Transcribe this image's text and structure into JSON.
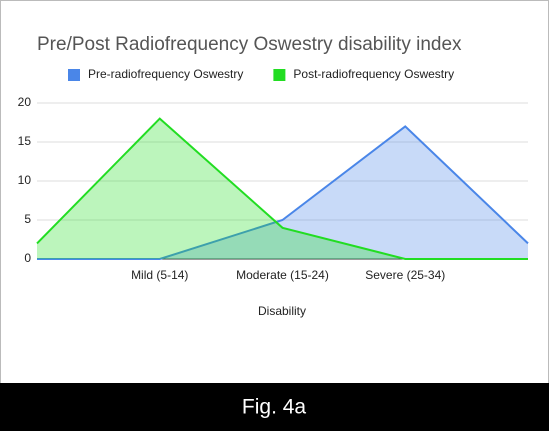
{
  "chart_data": {
    "type": "area",
    "title": "Pre/Post Radiofrequency Oswestry disability index",
    "x_label": "Disability",
    "categories": [
      null,
      "Mild (5-14)",
      "Moderate (15-24)",
      "Severe (25-34)",
      null
    ],
    "series": [
      {
        "name": "Pre-radiofrequency Oswestry",
        "color": "#4a86e8",
        "values": [
          0,
          0,
          5,
          17,
          2
        ]
      },
      {
        "name": "Post-radiofrequency Oswestry",
        "color": "#22dd22",
        "values": [
          2,
          18,
          4,
          0,
          0
        ]
      }
    ],
    "ylim": [
      0,
      20
    ],
    "yticks": [
      0,
      5,
      10,
      15,
      20
    ],
    "grid": true,
    "legend": "top"
  },
  "caption": "Fig. 4a"
}
